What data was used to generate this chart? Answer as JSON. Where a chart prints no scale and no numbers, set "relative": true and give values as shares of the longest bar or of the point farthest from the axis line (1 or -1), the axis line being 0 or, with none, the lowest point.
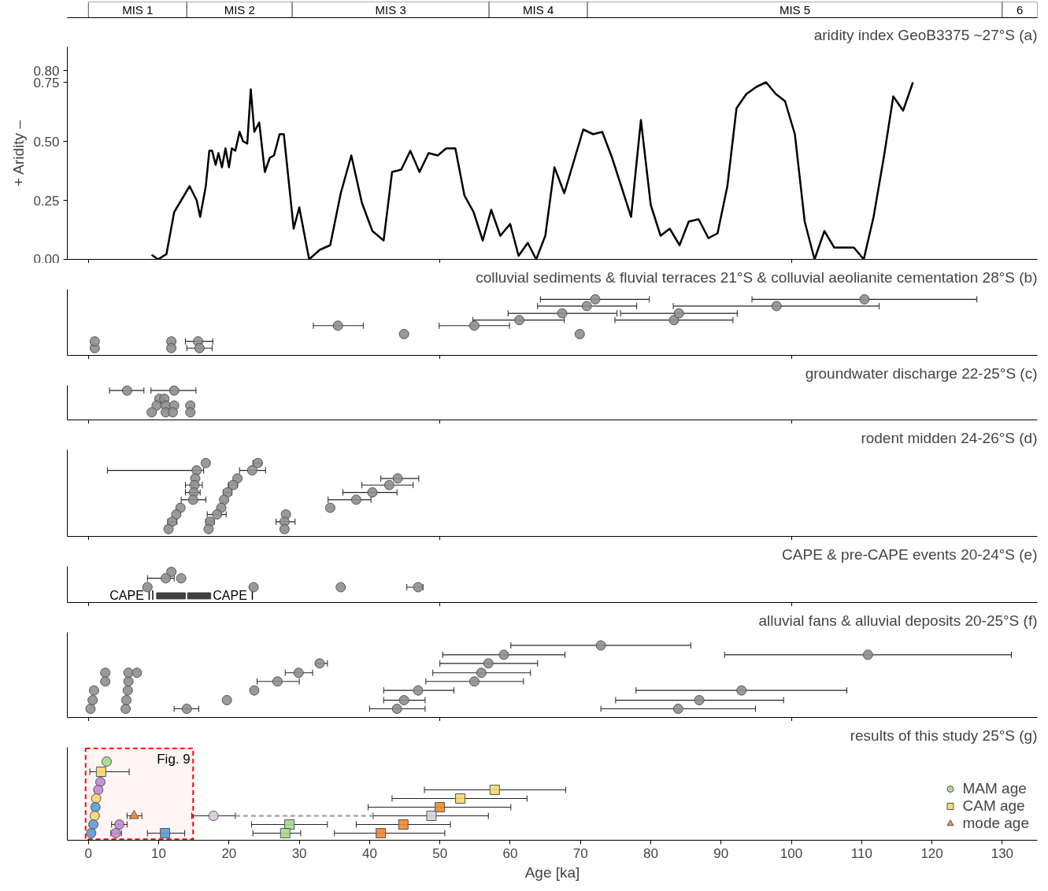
{
  "chart_data": [
    {
      "type": "bar",
      "orientation": "horizontal",
      "stacked": true,
      "categories": [
        null
      ],
      "xlim": [
        -3,
        135
      ],
      "tick_labels": false,
      "series": [
        {
          "name": "MIS 1",
          "color": "#ffffff",
          "values": [
            14
          ]
        },
        {
          "name": "MIS 2",
          "color": "#ffffff",
          "values": [
            15
          ]
        },
        {
          "name": "MIS 3",
          "color": "#ffffff",
          "values": [
            28
          ]
        },
        {
          "name": "MIS 4",
          "color": "#ffffff",
          "values": [
            14
          ]
        },
        {
          "name": "MIS 5",
          "color": "#ffffff",
          "values": [
            59
          ]
        },
        {
          "name": "6",
          "color": "#ffffff",
          "values": [
            5
          ]
        }
      ]
    },
    {
      "type": "line",
      "title": "aridity index GeoB3375 ~27°S (a)",
      "ylabel": "+ Aridity –",
      "xlim": [
        -3,
        135
      ],
      "ylim": [
        0,
        0.9
      ],
      "xticks": [
        {
          "value": 0,
          "label": null
        },
        {
          "value": 50,
          "label": null
        },
        {
          "value": 100,
          "label": null
        }
      ],
      "yticks": [
        {
          "value": 0,
          "label": "0.00"
        },
        {
          "value": 0.25,
          "label": "0.25"
        },
        {
          "value": 0.5,
          "label": "0.50"
        },
        {
          "value": 0.75,
          "label": "0.75"
        },
        {
          "value": 0.8,
          "label": "0.80"
        }
      ],
      "tick_labels": "y",
      "series": [
        {
          "color": "#000000",
          "x": [
            9.0,
            9.9,
            11.1,
            12.2,
            13.2,
            14.4,
            15.4,
            15.9,
            16.7,
            17.2,
            17.6,
            18.1,
            18.5,
            19.0,
            19.5,
            20.0,
            20.4,
            20.9,
            21.5,
            22.0,
            22.6,
            23.1,
            23.6,
            24.3,
            25.1,
            25.8,
            26.4,
            27.2,
            27.8,
            29.2,
            30.0,
            31.4,
            32.9,
            34.4,
            35.9,
            37.4,
            38.9,
            40.4,
            42.0,
            43.2,
            44.5,
            45.8,
            47.1,
            48.4,
            49.7,
            50.9,
            52.2,
            53.5,
            54.8,
            56.1,
            57.3,
            58.6,
            60.0,
            61.2,
            62.5,
            63.7,
            65.0,
            66.3,
            67.7,
            69.1,
            70.4,
            71.8,
            73.1,
            74.5,
            75.8,
            77.2,
            78.6,
            80.0,
            81.4,
            82.7,
            84.1,
            85.4,
            86.8,
            88.2,
            89.5,
            90.9,
            92.2,
            93.6,
            95.0,
            96.4,
            97.8,
            99.1,
            100.5,
            101.9,
            103.3,
            104.7,
            106.1,
            107.5,
            108.9,
            110.3,
            111.7,
            113.2,
            114.5,
            115.9,
            117.3
          ],
          "values": [
            0.019,
            0,
            0.022,
            0.2,
            0.25,
            0.31,
            0.25,
            0.18,
            0.31,
            0.46,
            0.46,
            0.4,
            0.45,
            0.39,
            0.47,
            0.39,
            0.47,
            0.46,
            0.54,
            0.5,
            0.49,
            0.72,
            0.54,
            0.58,
            0.37,
            0.43,
            0.44,
            0.53,
            0.53,
            0.13,
            0.22,
            0,
            0.04,
            0.06,
            0.28,
            0.44,
            0.24,
            0.12,
            0.08,
            0.37,
            0.38,
            0.46,
            0.37,
            0.45,
            0.44,
            0.47,
            0.47,
            0.27,
            0.2,
            0.08,
            0.21,
            0.1,
            0.15,
            0.015,
            0.07,
            0,
            0.1,
            0.39,
            0.28,
            0.42,
            0.55,
            0.53,
            0.54,
            0.43,
            0.31,
            0.18,
            0.59,
            0.23,
            0.1,
            0.13,
            0.06,
            0.16,
            0.17,
            0.09,
            0.11,
            0.31,
            0.64,
            0.7,
            0.73,
            0.75,
            0.7,
            0.67,
            0.53,
            0.16,
            0,
            0.12,
            0.05,
            0.05,
            0.05,
            0,
            0.18,
            0.44,
            0.69,
            0.63,
            0.75
          ]
        }
      ]
    },
    {
      "type": "scatter",
      "title": "colluvial sediments & fluvial terraces 21°S & colluvial aeolianite cementation 28°S (b)",
      "relative": true,
      "marker": "circle",
      "xlim": [
        -3,
        135
      ],
      "xticks": [
        {
          "value": 0,
          "label": null
        },
        {
          "value": 50,
          "label": null
        },
        {
          "value": 100,
          "label": null
        }
      ],
      "tick_labels": false,
      "series": [
        {
          "color": "#8f8f8f",
          "x": [
            0.9,
            0.9,
            11.8,
            11.8,
            15.6,
            15.8,
            35.5,
            44.9,
            54.9,
            61.3,
            67.4,
            70.9,
            72.1,
            69.9,
            83.3,
            84.0,
            97.9,
            110.4
          ],
          "values": [
            0.13,
            0.25,
            0.25,
            0.13,
            0.25,
            0.13,
            0.53,
            0.38,
            0.53,
            0.63,
            0.75,
            0.88,
            1.0,
            0.38,
            0.63,
            0.75,
            0.88,
            1.0
          ],
          "xerrors": [
            null,
            null,
            null,
            null,
            [
              13.8,
              17.7
            ],
            [
              14.0,
              17.6
            ],
            [
              32.0,
              39.1
            ],
            null,
            [
              49.9,
              59.9
            ],
            [
              54.7,
              67.7
            ],
            [
              59.7,
              75.2
            ],
            [
              63.9,
              78.0
            ],
            [
              64.3,
              79.8
            ],
            null,
            [
              74.9,
              91.7
            ],
            [
              75.7,
              92.3
            ],
            [
              83.2,
              112.5
            ],
            [
              94.4,
              126.4
            ]
          ]
        }
      ]
    },
    {
      "type": "scatter",
      "title": "groundwater discharge 22-25°S (c)",
      "relative": true,
      "marker": "circle",
      "xlim": [
        -3,
        135
      ],
      "xticks": [
        {
          "value": 0,
          "label": null
        },
        {
          "value": 50,
          "label": null
        },
        {
          "value": 100,
          "label": null
        }
      ],
      "tick_labels": false,
      "series": [
        {
          "color": "#8f8f8f",
          "x": [
            5.5,
            12.2,
            10.1,
            10.8,
            9.7,
            11.0,
            12.2,
            14.5,
            9.0,
            11.0,
            12.0,
            14.5
          ],
          "values": [
            1.0,
            1.0,
            0.72,
            0.72,
            0.49,
            0.49,
            0.49,
            0.49,
            0.26,
            0.26,
            0.26,
            0.26
          ],
          "xerrors": [
            [
              3.0,
              7.9
            ],
            [
              8.9,
              15.3
            ],
            null,
            null,
            null,
            null,
            null,
            null,
            null,
            null,
            null,
            null
          ]
        }
      ]
    },
    {
      "type": "scatter",
      "title": "rodent midden 24-26°S (d)",
      "relative": true,
      "marker": "circle",
      "xlim": [
        -3,
        135
      ],
      "xticks": [
        {
          "value": 0,
          "label": null
        },
        {
          "value": 50,
          "label": null
        },
        {
          "value": 100,
          "label": null
        }
      ],
      "tick_labels": false,
      "series": [
        {
          "color": "#8f8f8f",
          "x": [
            16.7,
            15.4,
            15.2,
            15.1,
            15.0,
            14.9,
            13.1,
            12.5,
            11.9,
            11.4,
            24.1,
            23.3,
            21.2,
            20.6,
            19.8,
            19.3,
            18.9,
            18.3,
            17.3,
            17.1,
            28.1,
            27.9,
            27.9,
            44.0,
            42.8,
            40.4,
            38.1,
            34.4
          ],
          "values": [
            1.0,
            0.9,
            0.79,
            0.7,
            0.6,
            0.5,
            0.39,
            0.3,
            0.2,
            0.1,
            1.0,
            0.9,
            0.79,
            0.7,
            0.6,
            0.5,
            0.39,
            0.3,
            0.2,
            0.1,
            0.3,
            0.2,
            0.1,
            0.79,
            0.7,
            0.6,
            0.5,
            0.39
          ],
          "xerrors": [
            null,
            [
              2.7,
              16.4
            ],
            null,
            [
              13.8,
              16.2
            ],
            [
              13.8,
              15.9
            ],
            [
              13.2,
              16.7
            ],
            null,
            null,
            [
              11.3,
              12.6
            ],
            null,
            [
              23.4,
              24.6
            ],
            [
              21.5,
              25.2
            ],
            null,
            [
              19.9,
              21.2
            ],
            [
              19.2,
              20.4
            ],
            null,
            null,
            [
              16.9,
              19.6
            ],
            [
              16.7,
              17.9
            ],
            null,
            null,
            [
              26.7,
              29.4
            ],
            null,
            [
              41.6,
              47.0
            ],
            [
              38.9,
              46.2
            ],
            [
              36.2,
              43.9
            ],
            [
              34.1,
              40.2
            ],
            null
          ]
        }
      ]
    },
    {
      "type": "scatter",
      "title": "CAPE & pre-CAPE events 20-24°S (e)",
      "relative": true,
      "marker": "circle",
      "xlim": [
        -3,
        135
      ],
      "xticks": [
        {
          "value": 0,
          "label": null
        },
        {
          "value": 50,
          "label": null
        },
        {
          "value": 100,
          "label": null
        }
      ],
      "tick_labels": false,
      "bands": [
        {
          "axis": "x",
          "from": 9.7,
          "to": 13.8,
          "label": "CAPE II",
          "color": "#404040"
        },
        {
          "axis": "x",
          "from": 14.1,
          "to": 17.4,
          "label": "CAPE I",
          "color": "#404040"
        }
      ],
      "series": [
        {
          "color": "#8f8f8f",
          "x": [
            11.8,
            11.0,
            13.2,
            8.4,
            23.5,
            35.9,
            46.9
          ],
          "values": [
            1.0,
            0.79,
            0.79,
            0.5,
            0.5,
            0.5,
            0.5
          ],
          "xerrors": [
            null,
            [
              8.4,
              12.2
            ],
            null,
            null,
            null,
            null,
            [
              45.3,
              47.6
            ]
          ]
        }
      ]
    },
    {
      "type": "scatter",
      "title": "alluvial fans & alluvial deposits 20-25°S (f)",
      "relative": true,
      "marker": "circle",
      "xlim": [
        -3,
        135
      ],
      "xticks": [
        {
          "value": 0,
          "label": null
        },
        {
          "value": 50,
          "label": null
        },
        {
          "value": 100,
          "label": null
        }
      ],
      "tick_labels": false,
      "series": [
        {
          "color": "#8f8f8f",
          "x": [
            0.3,
            0.6,
            0.8,
            2.4,
            2.4,
            5.3,
            5.4,
            5.6,
            5.7,
            5.7,
            6.9,
            14.0,
            19.7,
            23.6,
            26.9,
            29.9,
            32.9,
            43.9,
            44.9,
            46.9,
            54.9,
            55.9,
            56.9,
            59.1,
            72.9,
            83.9,
            86.9,
            92.9,
            110.9
          ],
          "values": [
            0.12,
            0.24,
            0.375,
            0.62,
            0.5,
            0.12,
            0.24,
            0.375,
            0.5,
            0.62,
            0.62,
            0.12,
            0.24,
            0.375,
            0.5,
            0.62,
            0.75,
            0.12,
            0.24,
            0.375,
            0.5,
            0.62,
            0.75,
            0.87,
            1.0,
            0.12,
            0.24,
            0.375,
            0.87
          ],
          "xerrors": [
            null,
            null,
            null,
            null,
            null,
            null,
            null,
            null,
            null,
            null,
            null,
            [
              12.2,
              15.7
            ],
            null,
            null,
            [
              24.0,
              30.0
            ],
            [
              28.0,
              31.9
            ],
            [
              32.4,
              34.0
            ],
            [
              40.0,
              47.9
            ],
            [
              42.0,
              47.9
            ],
            [
              42.0,
              52.0
            ],
            [
              48.0,
              61.9
            ],
            [
              49.0,
              62.9
            ],
            [
              50.0,
              63.9
            ],
            [
              50.4,
              67.8
            ],
            [
              60.1,
              85.7
            ],
            [
              72.9,
              94.9
            ],
            [
              75.0,
              98.9
            ],
            [
              77.9,
              107.9
            ],
            [
              90.5,
              131.3
            ]
          ]
        }
      ]
    },
    {
      "type": "scatter",
      "title": "results of this study 25°S (g)",
      "xlabel": "Age [ka]",
      "relative": true,
      "legend": "bottom right",
      "xlim": [
        -3,
        135
      ],
      "xticks": [
        0,
        10,
        20,
        30,
        40,
        50,
        60,
        70,
        80,
        90,
        100,
        110,
        120,
        130
      ],
      "bands": [
        {
          "axis": "x",
          "from": -0.4,
          "to": 14.9,
          "label": "Fig. 9",
          "color": "#ff0000"
        }
      ],
      "series": [
        {
          "name": "MAM age",
          "marker": "circle",
          "x": [
            2.6,
            1.7,
            1.4,
            1.1,
            1.0,
            0.9,
            0.7,
            4.4,
            0.4,
            3.9,
            17.8
          ],
          "values": [
            1.0,
            0.74,
            0.64,
            0.53,
            0.42,
            0.31,
            0.2,
            0.2,
            0.09,
            0.09,
            0.31
          ],
          "colors": [
            "#a6d98c",
            "#c08ad0",
            "#c08ad0",
            "#f5d76e",
            "#5b9bd5",
            "#f5d76e",
            "#5b9bd5",
            "#c08ad0",
            "#5b9bd5",
            "#c08ad0",
            "#dccbe0"
          ],
          "xerrors": [
            null,
            null,
            null,
            null,
            null,
            null,
            null,
            [
              3.3,
              5.5
            ],
            null,
            [
              3.2,
              4.7
            ],
            [
              14.7,
              20.9
            ]
          ]
        },
        {
          "name": "CAM age",
          "marker": "square",
          "x": [
            1.8,
            57.8,
            52.9,
            50.0,
            48.8,
            44.8,
            41.6,
            28.6,
            28.0,
            10.9
          ],
          "values": [
            0.87,
            0.64,
            0.53,
            0.42,
            0.31,
            0.2,
            0.09,
            0.2,
            0.09,
            0.09
          ],
          "colors": [
            "#f5d76e",
            "#f5d76e",
            "#f5d76e",
            "#f0852d",
            "#dccbe0",
            "#f0852d",
            "#f0852d",
            "#a6d98c",
            "#a6d98c",
            "#5b9bd5"
          ],
          "xerrors": [
            [
              0.2,
              5.8
            ],
            [
              47.8,
              67.9
            ],
            [
              43.2,
              62.4
            ],
            [
              39.8,
              60.1
            ],
            [
              40.5,
              56.9
            ],
            [
              38.1,
              51.5
            ],
            [
              35.0,
              50.7
            ],
            [
              23.2,
              34.0
            ],
            [
              23.4,
              30.2
            ],
            [
              8.4,
              13.7
            ]
          ]
        },
        {
          "name": "mode age",
          "marker": "triangle",
          "x": [
            6.5
          ],
          "values": [
            0.31
          ],
          "colors": [
            "#f0852d"
          ],
          "xerrors": [
            [
              5.5,
              7.6
            ]
          ]
        },
        {
          "type": "line",
          "line_style": "dashed",
          "color": "#aaaaaa",
          "x": [
            20.9,
            40.5
          ],
          "values": [
            0.31,
            0.31
          ]
        }
      ]
    }
  ]
}
